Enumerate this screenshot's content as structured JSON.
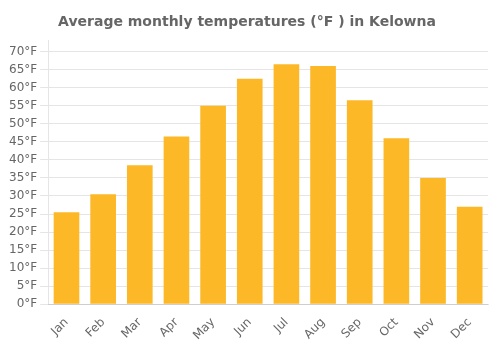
{
  "chart_data": {
    "type": "bar",
    "title": "Average monthly temperatures (°F ) in Kelowna",
    "categories": [
      "Jan",
      "Feb",
      "Mar",
      "Apr",
      "May",
      "Jun",
      "Jul",
      "Aug",
      "Sep",
      "Oct",
      "Nov",
      "Dec"
    ],
    "values": [
      25.5,
      30.5,
      38.5,
      46.5,
      55.0,
      62.5,
      66.5,
      66.0,
      56.5,
      46.0,
      35.0,
      27.0
    ],
    "color": "#FDB827",
    "ylim": [
      0,
      73
    ],
    "yticks": [
      {
        "value": 0,
        "label": "0°F"
      },
      {
        "value": 5,
        "label": "5°F"
      },
      {
        "value": 10,
        "label": "10°F"
      },
      {
        "value": 15,
        "label": "15°F"
      },
      {
        "value": 20,
        "label": "20°F"
      },
      {
        "value": 25,
        "label": "25°F"
      },
      {
        "value": 30,
        "label": "30°F"
      },
      {
        "value": 35,
        "label": "35°F"
      },
      {
        "value": 40,
        "label": "40°F"
      },
      {
        "value": 45,
        "label": "45°F"
      },
      {
        "value": 50,
        "label": "50°F"
      },
      {
        "value": 55,
        "label": "55°F"
      },
      {
        "value": 60,
        "label": "60°F"
      },
      {
        "value": 65,
        "label": "65°F"
      },
      {
        "value": 70,
        "label": "70°F"
      }
    ],
    "grid": true
  }
}
